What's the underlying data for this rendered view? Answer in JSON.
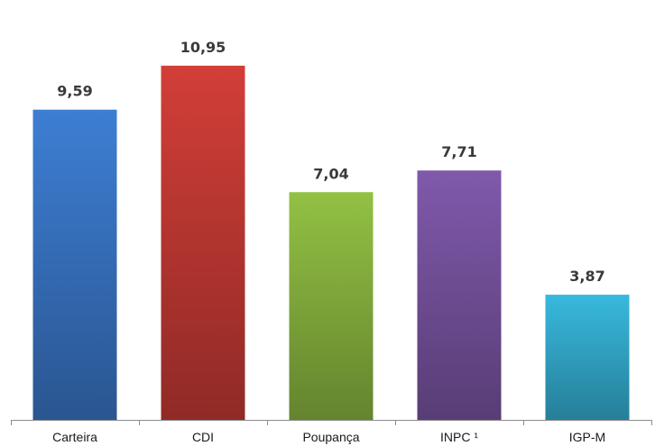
{
  "chart_data": {
    "type": "bar",
    "categories": [
      "Carteira",
      "CDI",
      "Poupança",
      "INPC ¹",
      "IGP-M"
    ],
    "values": [
      9.59,
      10.95,
      7.04,
      7.71,
      3.87
    ],
    "value_labels": [
      "9,59",
      "10,95",
      "7,04",
      "7,71",
      "3,87"
    ],
    "colors": [
      "#3a78c9",
      "#c83b35",
      "#8bb840",
      "#7a55a3",
      "#35b0d3"
    ],
    "title": "",
    "xlabel": "",
    "ylabel": "",
    "ylim": [
      0,
      12
    ],
    "grid": false,
    "legend": "none"
  }
}
